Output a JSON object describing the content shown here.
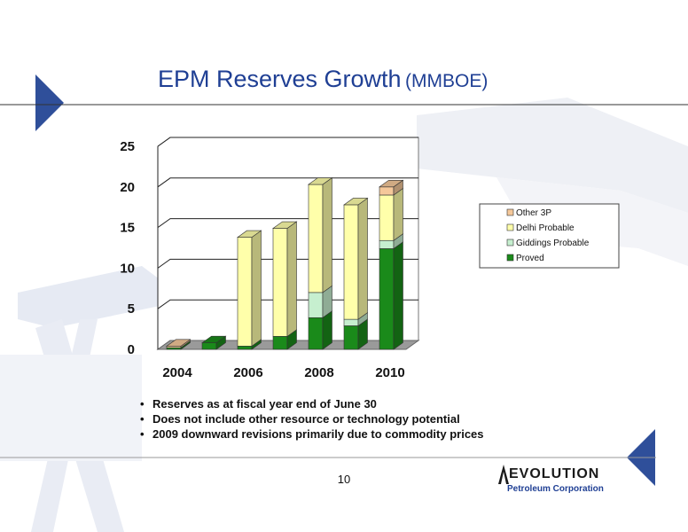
{
  "slide": {
    "title": "EPM Reserves Growth",
    "title_unit": "(MMBOE)",
    "page_number": "10",
    "bullets": [
      "Reserves as at fiscal year end of June 30",
      "Does not include other resource or technology potential",
      "2009 downward revisions primarily due to commodity prices"
    ],
    "logo": {
      "line1": "EVOLUTION",
      "line2": "Petroleum Corporation"
    },
    "colors": {
      "title": "#1f3f94",
      "accent_triangle": "#2f4f9a",
      "rule": "#333333"
    }
  },
  "chart_data": {
    "type": "bar",
    "stacked": true,
    "categories": [
      "2004",
      "2005",
      "2006",
      "2007",
      "2008",
      "2009",
      "2010"
    ],
    "x_tick_labels": [
      "2004",
      "2006",
      "2008",
      "2010"
    ],
    "y_ticks": [
      "0",
      "5",
      "10",
      "15",
      "20",
      "25"
    ],
    "ylim": [
      0,
      25
    ],
    "grid": true,
    "legend_position": "right",
    "series": [
      {
        "name": "Proved",
        "color": "#1a8a1a",
        "values": [
          0.2,
          0.8,
          0.4,
          1.6,
          3.9,
          2.9,
          12.4
        ]
      },
      {
        "name": "Giddings Probable",
        "color": "#c6efcf",
        "values": [
          0.0,
          0.0,
          0.0,
          0.0,
          3.1,
          0.8,
          1.0
        ]
      },
      {
        "name": "Delhi Probable",
        "color": "#ffffaa",
        "values": [
          0.0,
          0.0,
          13.4,
          13.3,
          13.3,
          14.1,
          5.6
        ]
      },
      {
        "name": "Other 3P",
        "color": "#f5c89a",
        "values": [
          0.2,
          0.0,
          0.0,
          0.0,
          0.0,
          0.0,
          1.0
        ]
      }
    ],
    "legend_order": [
      "Other 3P",
      "Delhi Probable",
      "Giddings Probable",
      "Proved"
    ]
  }
}
